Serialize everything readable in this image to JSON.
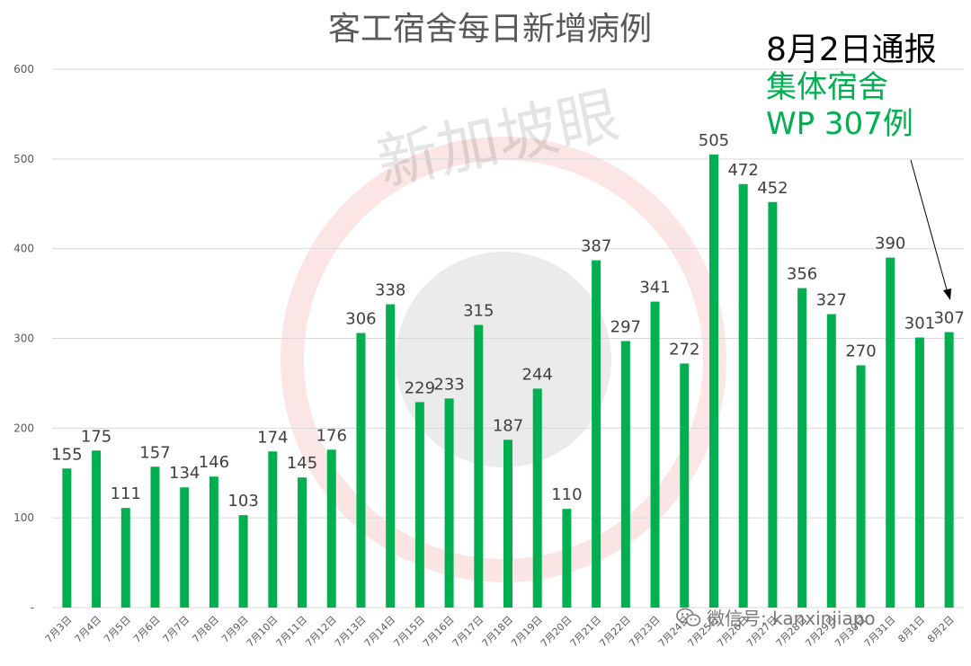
{
  "chart_data": {
    "type": "bar",
    "title": "客工宿舍每日新增病例",
    "categories": [
      "7月3日",
      "7月4日",
      "7月5日",
      "7月6日",
      "7月7日",
      "7月8日",
      "7月9日",
      "7月10日",
      "7月11日",
      "7月12日",
      "7月13日",
      "7月14日",
      "7月15日",
      "7月16日",
      "7月17日",
      "7月18日",
      "7月19日",
      "7月20日",
      "7月21日",
      "7月22日",
      "7月23日",
      "7月24日",
      "7月25日",
      "7月26日",
      "7月27日",
      "7月28日",
      "7月29日",
      "7月30日",
      "7月31日",
      "8月1日",
      "8月2日"
    ],
    "values": [
      155,
      175,
      111,
      157,
      134,
      146,
      103,
      174,
      145,
      176,
      306,
      338,
      229,
      233,
      315,
      187,
      244,
      110,
      387,
      297,
      341,
      272,
      505,
      472,
      452,
      356,
      327,
      270,
      390,
      301,
      307
    ],
    "yticks": [
      "-",
      "100",
      "200",
      "300",
      "400",
      "500",
      "600"
    ],
    "ylim": [
      0,
      600
    ],
    "grid": true,
    "bar_color": "#00b050",
    "data_labels": true
  },
  "annotation": {
    "line1": "8月2日通报",
    "line2": "集体宿舍",
    "line3": "WP 307例",
    "color": "#00b050"
  },
  "watermark": {
    "logo_text": "新加坡眼",
    "wechat_text": "微信号: kanxinjiapo",
    "wechat_icon": "wechat-icon"
  }
}
